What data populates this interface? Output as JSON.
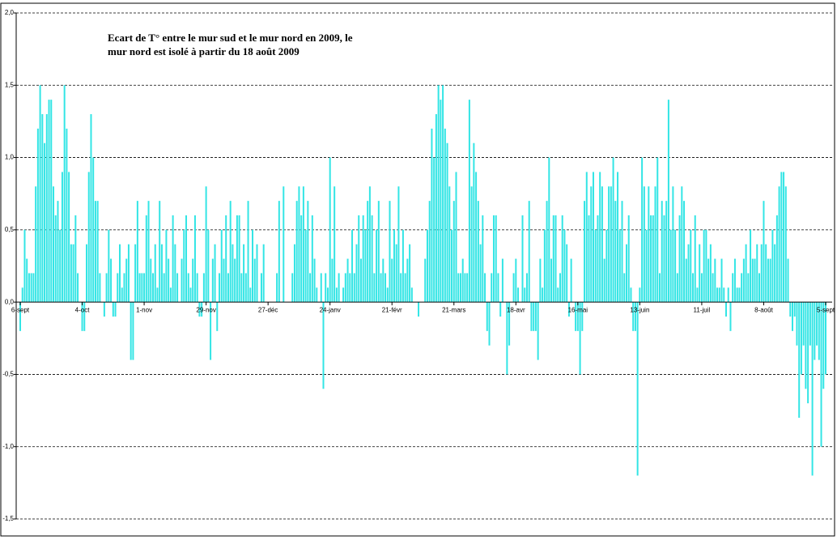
{
  "chart_data": {
    "type": "bar",
    "title": "Ecart de T° entre le mur sud et le mur nord en 2009, le mur nord est isolé à partir du 18 août 2009",
    "color": "#33e5e5",
    "grid": true,
    "ylim": [
      -1.5,
      2.0
    ],
    "yticks": [
      {
        "value": -1.5,
        "label": "-1,5"
      },
      {
        "value": -1.0,
        "label": "-1,0"
      },
      {
        "value": -0.5,
        "label": "-0,5"
      },
      {
        "value": 0,
        "label": "0,0"
      },
      {
        "value": 0.5,
        "label": "0,5"
      },
      {
        "value": 1.0,
        "label": "1,0"
      },
      {
        "value": 1.5,
        "label": "1,5"
      },
      {
        "value": 2.0,
        "label": "2,0"
      }
    ],
    "categories": [
      "6-sept",
      null,
      null,
      null,
      null,
      null,
      null,
      null,
      null,
      null,
      null,
      null,
      null,
      null,
      null,
      null,
      null,
      null,
      null,
      null,
      null,
      null,
      null,
      null,
      null,
      null,
      null,
      null,
      "4-oct",
      null,
      null,
      null,
      null,
      null,
      null,
      null,
      null,
      null,
      null,
      null,
      null,
      null,
      null,
      null,
      null,
      null,
      null,
      null,
      null,
      null,
      null,
      null,
      null,
      null,
      null,
      null,
      "1-nov",
      null,
      null,
      null,
      null,
      null,
      null,
      null,
      null,
      null,
      null,
      null,
      null,
      null,
      null,
      null,
      null,
      null,
      null,
      null,
      null,
      null,
      null,
      null,
      null,
      null,
      null,
      null,
      "29-nov",
      null,
      null,
      null,
      null,
      null,
      null,
      null,
      null,
      null,
      null,
      null,
      null,
      null,
      null,
      null,
      null,
      null,
      null,
      null,
      null,
      null,
      null,
      null,
      null,
      null,
      null,
      null,
      "27-déc",
      null,
      null,
      null,
      null,
      null,
      null,
      null,
      null,
      null,
      null,
      null,
      null,
      null,
      null,
      null,
      null,
      null,
      null,
      null,
      null,
      null,
      null,
      null,
      null,
      null,
      null,
      null,
      "24-janv",
      null,
      null,
      null,
      null,
      null,
      null,
      null,
      null,
      null,
      null,
      null,
      null,
      null,
      null,
      null,
      null,
      null,
      null,
      null,
      null,
      null,
      null,
      null,
      null,
      null,
      null,
      null,
      "21-févr",
      null,
      null,
      null,
      null,
      null,
      null,
      null,
      null,
      null,
      null,
      null,
      null,
      null,
      null,
      null,
      null,
      null,
      null,
      null,
      null,
      null,
      null,
      null,
      null,
      null,
      null,
      null,
      "21-mars",
      null,
      null,
      null,
      null,
      null,
      null,
      null,
      null,
      null,
      null,
      null,
      null,
      null,
      null,
      null,
      null,
      null,
      null,
      null,
      null,
      null,
      null,
      null,
      null,
      null,
      null,
      null,
      "18-avr",
      null,
      null,
      null,
      null,
      null,
      null,
      null,
      null,
      null,
      null,
      null,
      null,
      null,
      null,
      null,
      null,
      null,
      null,
      null,
      null,
      null,
      null,
      null,
      null,
      null,
      null,
      null,
      "16-mai",
      null,
      null,
      null,
      null,
      null,
      null,
      null,
      null,
      null,
      null,
      null,
      null,
      null,
      null,
      null,
      null,
      null,
      null,
      null,
      null,
      null,
      null,
      null,
      null,
      null,
      null,
      null,
      "13-juin",
      null,
      null,
      null,
      null,
      null,
      null,
      null,
      null,
      null,
      null,
      null,
      null,
      null,
      null,
      null,
      null,
      null,
      null,
      null,
      null,
      null,
      null,
      null,
      null,
      null,
      null,
      null,
      "11-juil",
      null,
      null,
      null,
      null,
      null,
      null,
      null,
      null,
      null,
      null,
      null,
      null,
      null,
      null,
      null,
      null,
      null,
      null,
      null,
      null,
      null,
      null,
      null,
      null,
      null,
      null,
      null,
      "8-août",
      null,
      null,
      null,
      null,
      null,
      null,
      null,
      null,
      null,
      null,
      null,
      null,
      null,
      null,
      null,
      null,
      null,
      null,
      null,
      null,
      null,
      null,
      null,
      null,
      null,
      null,
      null,
      "5-sept"
    ],
    "values": [
      -0.2,
      0.1,
      0.5,
      0.3,
      0.2,
      0.2,
      0.2,
      0.8,
      1.2,
      1.5,
      1.3,
      1.1,
      1.3,
      1.4,
      1.4,
      0.8,
      0.6,
      0.7,
      0.5,
      0.9,
      1.5,
      1.2,
      0.9,
      0.4,
      0.4,
      0.6,
      0.2,
      0.0,
      -0.2,
      -0.2,
      0.4,
      0.9,
      1.3,
      1.0,
      0.7,
      0.7,
      0.2,
      0.0,
      -0.1,
      0.2,
      0.5,
      0.3,
      -0.1,
      -0.1,
      0.2,
      0.4,
      0.1,
      0.2,
      0.3,
      0.4,
      -0.4,
      -0.4,
      0.4,
      0.7,
      0.2,
      0.2,
      0.2,
      0.6,
      0.7,
      0.3,
      0.2,
      0.4,
      0.1,
      0.7,
      0.4,
      0.2,
      0.5,
      0.3,
      0.1,
      0.6,
      0.4,
      0.2,
      0.0,
      0.3,
      0.5,
      0.6,
      0.2,
      0.1,
      0.3,
      0.6,
      0.2,
      -0.1,
      -0.1,
      0.2,
      0.8,
      0.5,
      -0.4,
      0.3,
      0.4,
      -0.2,
      0.2,
      0.5,
      0.3,
      0.6,
      0.2,
      0.7,
      0.4,
      0.3,
      0.6,
      0.6,
      0.2,
      0.4,
      0.2,
      0.7,
      0.1,
      0.5,
      0.3,
      0.4,
      0.0,
      0.2,
      0.4,
      0.0,
      0.0,
      0.0,
      0.0,
      0.0,
      0.2,
      0.7,
      0.0,
      0.8,
      0.0,
      0.0,
      0.0,
      0.2,
      0.4,
      0.7,
      0.8,
      0.6,
      0.8,
      0.5,
      0.7,
      0.2,
      0.6,
      0.3,
      0.1,
      0.0,
      0.2,
      -0.6,
      0.2,
      0.1,
      1.0,
      0.3,
      0.8,
      0.1,
      0.2,
      0.0,
      0.1,
      0.2,
      0.3,
      0.2,
      0.5,
      0.2,
      0.4,
      0.6,
      0.3,
      0.6,
      0.5,
      0.7,
      0.8,
      0.6,
      0.2,
      0.5,
      0.7,
      0.2,
      0.3,
      0.2,
      0.1,
      0.7,
      0.3,
      0.5,
      0.4,
      0.8,
      0.2,
      0.5,
      0.2,
      0.3,
      0.4,
      0.1,
      0.0,
      0.0,
      -0.1,
      0.0,
      0.0,
      0.3,
      0.5,
      0.7,
      1.2,
      1.0,
      1.3,
      1.5,
      1.4,
      1.5,
      1.2,
      1.1,
      0.8,
      0.5,
      0.7,
      0.9,
      0.2,
      0.2,
      0.3,
      0.2,
      0.2,
      1.4,
      0.8,
      1.1,
      0.9,
      0.7,
      0.4,
      0.6,
      0.2,
      -0.2,
      -0.3,
      0.2,
      0.6,
      0.6,
      0.2,
      -0.1,
      0.3,
      0.0,
      -0.5,
      -0.3,
      0.0,
      0.2,
      0.3,
      0.1,
      0.0,
      0.6,
      0.1,
      0.2,
      0.7,
      -0.2,
      -0.2,
      -0.2,
      -0.4,
      0.3,
      0.1,
      0.5,
      0.7,
      1.0,
      0.3,
      0.6,
      0.6,
      0.1,
      0.2,
      0.6,
      0.5,
      0.4,
      -0.1,
      0.3,
      0.0,
      -0.2,
      -0.2,
      -0.5,
      -0.2,
      0.7,
      0.9,
      0.6,
      0.8,
      0.9,
      0.5,
      0.6,
      0.9,
      0.8,
      0.3,
      0.5,
      0.8,
      0.8,
      1.0,
      0.7,
      0.9,
      0.5,
      0.7,
      0.2,
      0.4,
      0.6,
      0.1,
      -0.2,
      -0.2,
      -1.2,
      0.1,
      1.0,
      0.8,
      0.5,
      0.8,
      0.6,
      0.6,
      0.8,
      1.0,
      0.2,
      0.7,
      0.6,
      0.7,
      1.4,
      0.5,
      0.8,
      0.5,
      0.2,
      0.6,
      0.8,
      0.7,
      0.3,
      0.4,
      0.5,
      0.2,
      0.6,
      0.1,
      0.4,
      0.2,
      0.5,
      0.5,
      0.3,
      0.4,
      0.2,
      0.3,
      0.1,
      0.1,
      0.3,
      0.1,
      -0.1,
      0.1,
      -0.2,
      0.2,
      0.3,
      0.1,
      0.1,
      0.2,
      0.3,
      0.4,
      0.2,
      0.5,
      0.3,
      0.3,
      0.4,
      0.2,
      0.4,
      0.7,
      0.4,
      0.3,
      0.3,
      0.5,
      0.4,
      0.6,
      0.8,
      0.9,
      0.9,
      0.8,
      0.3,
      -0.1,
      -0.2,
      -0.1,
      -0.3,
      -0.8,
      -0.5,
      -0.3,
      -0.6,
      -0.7,
      -0.3,
      -1.2,
      -0.4,
      -0.3,
      -0.4,
      -1.0,
      -0.6,
      -0.5
    ]
  }
}
